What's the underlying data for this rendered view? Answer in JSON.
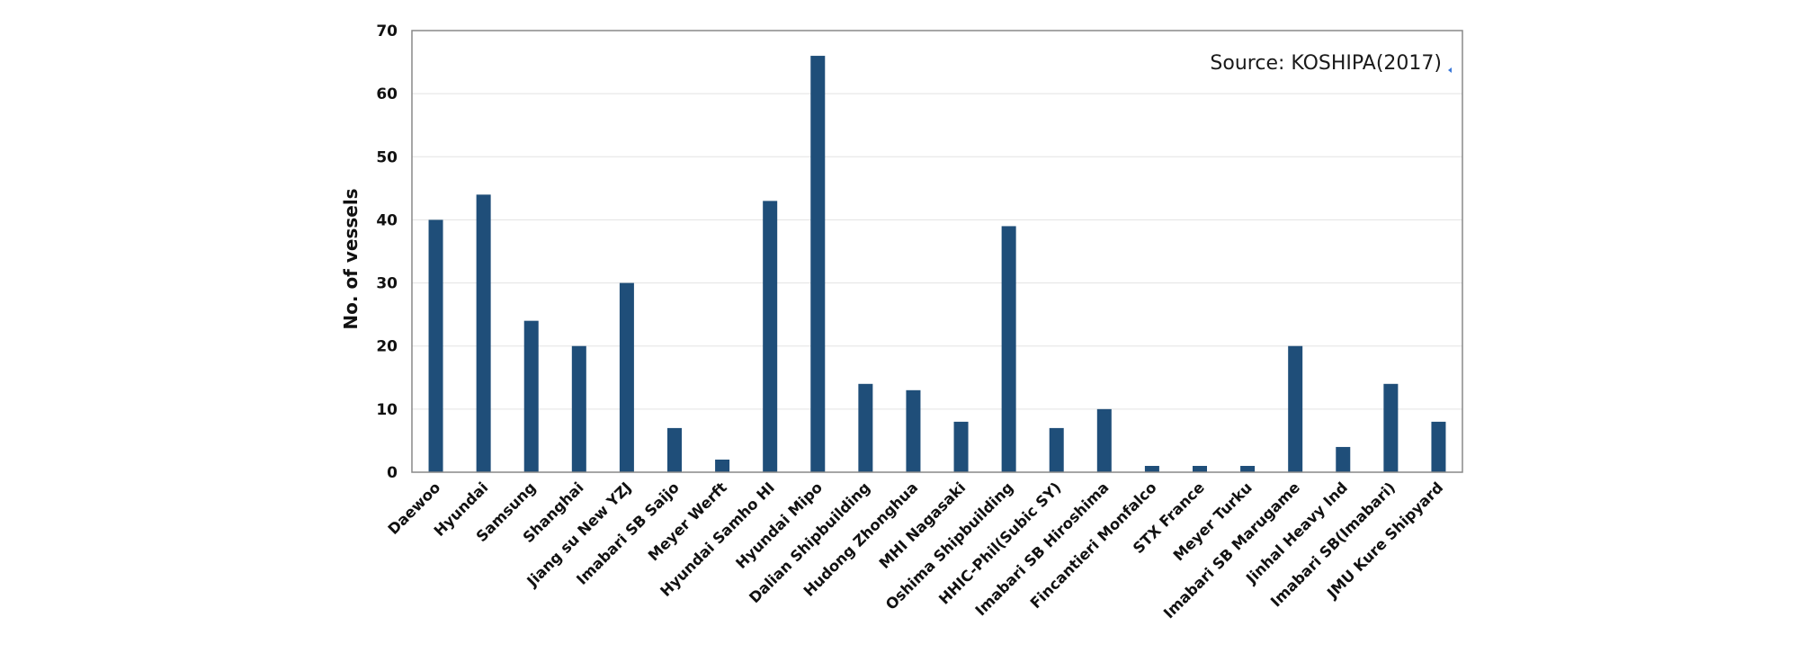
{
  "chart_data": {
    "type": "bar",
    "title": "",
    "xlabel": "",
    "ylabel": "No. of vessels",
    "ylim": [
      0,
      70
    ],
    "yticks": [
      0,
      10,
      20,
      30,
      40,
      50,
      60,
      70
    ],
    "grid": true,
    "legend": "none",
    "annotation": "Source:  KOSHIPA(2017)",
    "bar_color": "#1f4e79",
    "categories": [
      "Daewoo",
      "Hyundai",
      "Samsung",
      "Shanghai",
      "Jiang su New YZJ",
      "Imabari SB Saijo",
      "Meyer Werft",
      "Hyundai Samho HI",
      "Hyundai Mipo",
      "Dalian Shipbuilding",
      "Hudong Zhonghua",
      "MHI Nagasaki",
      "Oshima Shipbuilding",
      "HHIC-Phil(Subic SY)",
      "Imabari SB Hiroshima",
      "Fincantieri Monfalco",
      "STX France",
      "Meyer Turku",
      "Imabari SB Marugame",
      "Jinhal Heavy Ind",
      "Imabari SB(Imabari)",
      "JMU Kure Shipyard"
    ],
    "values": [
      40,
      44,
      24,
      20,
      30,
      7,
      2,
      43,
      66,
      14,
      13,
      8,
      39,
      7,
      10,
      1,
      1,
      1,
      20,
      4,
      14,
      8
    ]
  }
}
